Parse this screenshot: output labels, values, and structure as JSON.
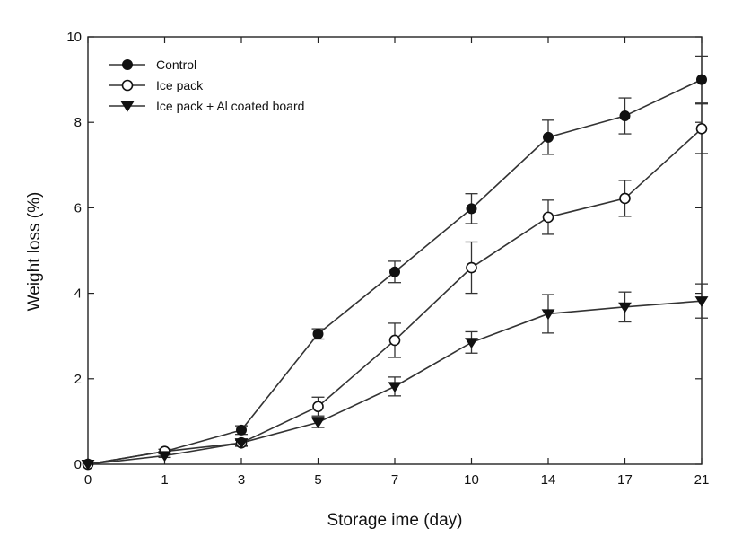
{
  "chart_data": {
    "type": "line",
    "xlabel": "Storage  ime (day)",
    "ylabel": "Weight loss (%)",
    "x": [
      0,
      1,
      3,
      5,
      7,
      10,
      14,
      17,
      21
    ],
    "x_tick_labels": [
      "0",
      "1",
      "3",
      "5",
      "7",
      "10",
      "14",
      "17",
      "21"
    ],
    "x_spacing": "categorical (evenly spaced)",
    "ylim": [
      0,
      10
    ],
    "y_ticks": [
      0,
      2,
      4,
      6,
      8,
      10
    ],
    "y_tick_labels": [
      "0",
      "2",
      "4",
      "6",
      "8",
      "10"
    ],
    "grid": false,
    "legend_position": "top-left",
    "series": [
      {
        "name": "Control",
        "marker": "filled-circle",
        "color": "#111111",
        "values": [
          0.0,
          0.3,
          0.8,
          3.05,
          4.5,
          5.98,
          7.65,
          8.15,
          9.0
        ],
        "errors": [
          0.0,
          0.05,
          0.1,
          0.12,
          0.25,
          0.35,
          0.4,
          0.42,
          0.55
        ]
      },
      {
        "name": "Ice pack",
        "marker": "open-circle",
        "color": "#111111",
        "values": [
          0.0,
          0.3,
          0.5,
          1.35,
          2.9,
          4.6,
          5.78,
          6.22,
          7.85
        ],
        "errors": [
          0.0,
          0.05,
          0.08,
          0.22,
          0.4,
          0.6,
          0.4,
          0.42,
          0.58
        ]
      },
      {
        "name": "Ice pack + Al coated board",
        "marker": "filled-triangle-down",
        "color": "#111111",
        "values": [
          0.0,
          0.2,
          0.5,
          0.98,
          1.82,
          2.85,
          3.52,
          3.68,
          3.82
        ],
        "errors": [
          0.0,
          0.04,
          0.06,
          0.12,
          0.22,
          0.25,
          0.45,
          0.35,
          0.4
        ]
      }
    ]
  }
}
